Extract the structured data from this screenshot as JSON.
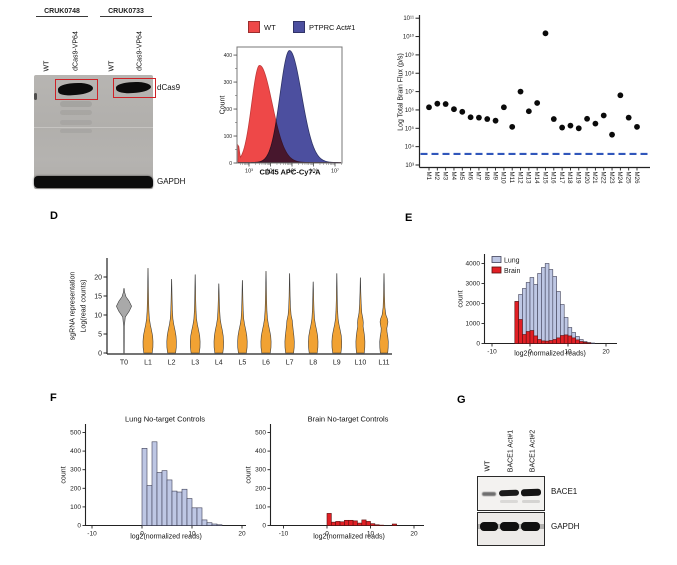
{
  "figure": {
    "panel_letters": {
      "d": "D",
      "e": "E",
      "f": "F",
      "g": "G"
    }
  },
  "colors": {
    "flow_red": "#ee4848",
    "flow_red_stroke": "#c03a3a",
    "flow_blue": "#4c4f9f",
    "flow_blue_stroke": "#303568",
    "lung_fill": "#bec7e4",
    "lung_stroke": "#3f4057",
    "brain_fill": "#e11f25",
    "brain_stroke": "#58100f",
    "violin_orange": "#f1a233",
    "violin_gray": "#a9a9a9",
    "dash_blue": "#3056bb",
    "red_box": "#cf2127"
  },
  "blot_dcas9": {
    "groups": [
      "CRUK0748",
      "CRUK0733"
    ],
    "lanes": [
      "WT",
      "dCas9-VP64",
      "WT",
      "dCas9-VP64"
    ],
    "markers": [
      "dCas9",
      "GAPDH"
    ]
  },
  "blot_bace1": {
    "lanes": [
      "WT",
      "BACE1 Act#1",
      "BACE1 Act#2"
    ],
    "markers": [
      "BACE1",
      "GAPDH"
    ]
  },
  "chart_data": [
    {
      "id": "flow-cd45",
      "type": "area",
      "legend": [
        "WT",
        "PTPRC Act#1"
      ],
      "xlabel": "CD45 APC-Cy7-A",
      "ylabel": "Count",
      "yticks": [
        0,
        100,
        200,
        300,
        400
      ],
      "xtick_labels": [
        "10³",
        "10⁴",
        "10⁵",
        "10⁶",
        "10⁷"
      ],
      "ylim": [
        0,
        430
      ],
      "series": [
        {
          "name": "WT",
          "peak_count": 360,
          "curve": {
            "c": 0.215,
            "sl": 0.075,
            "sr": 0.12
          },
          "edge_spike": {
            "c": 0.012,
            "s": 0.012,
            "h": 65
          }
        },
        {
          "name": "PTPRC Act#1",
          "peak_count": 415,
          "curve": {
            "c": 0.5,
            "sl": 0.09,
            "sr": 0.115
          }
        }
      ]
    },
    {
      "id": "brain-flux",
      "type": "scatter",
      "ylabel": "Log Total Brain Flux (p/s)",
      "ytick_labels": [
        "10³",
        "10⁴",
        "10⁵",
        "10⁶",
        "10⁷",
        "10⁸",
        "10⁹",
        "10¹⁰",
        "10¹¹"
      ],
      "ylim_log10": [
        3,
        11
      ],
      "categories": [
        "M1",
        "M2",
        "M3",
        "M4",
        "M5",
        "M6",
        "M7",
        "M8",
        "M9",
        "M10",
        "M11",
        "M12",
        "M13",
        "M14",
        "M15",
        "M16",
        "M17",
        "M18",
        "M19",
        "M20",
        "M21",
        "M22",
        "M23",
        "M24",
        "M25",
        "M26"
      ],
      "values": [
        1400000.0,
        2200000.0,
        2100000.0,
        1100000.0,
        790000.0,
        400000.0,
        380000.0,
        320000.0,
        260000.0,
        1400000.0,
        120000.0,
        10000000.0,
        850000.0,
        2400000.0,
        15000000000.0,
        320000.0,
        110000.0,
        140000.0,
        100000.0,
        330000.0,
        180000.0,
        500000.0,
        45000.0,
        6300000.0,
        380000.0,
        120000.0
      ],
      "threshold_line": {
        "value": 4000,
        "style": "dashed",
        "color_key": "dash_blue"
      }
    },
    {
      "id": "sgrna-representation",
      "type": "violin",
      "ylabel_line1": "sgRNA representation",
      "ylabel_line2": "Log(read counts)",
      "yticks": [
        0,
        5,
        10,
        15,
        20
      ],
      "categories": [
        "T0",
        "L1",
        "L2",
        "L3",
        "L4",
        "L5",
        "L6",
        "L7",
        "L8",
        "L9",
        "L10",
        "L11"
      ],
      "violins": [
        {
          "label": "T0",
          "color_key": "violin_gray",
          "max": 17,
          "profile": [
            [
              0,
              0.25
            ],
            [
              7,
              0.35
            ],
            [
              9.5,
              1.3
            ],
            [
              11,
              5.2
            ],
            [
              12.3,
              7.6
            ],
            [
              13.6,
              5.2
            ],
            [
              14.8,
              2.0
            ],
            [
              16,
              0.6
            ],
            [
              17,
              0.15
            ]
          ]
        },
        {
          "label": "L1",
          "color_key": "violin_orange",
          "max": 22.3,
          "profile": [
            [
              0,
              4.2
            ],
            [
              1.5,
              4.9
            ],
            [
              3,
              5.0
            ],
            [
              4.5,
              4.6
            ],
            [
              6,
              3.5
            ],
            [
              7.5,
              2.3
            ],
            [
              9,
              1.4
            ],
            [
              11,
              0.9
            ],
            [
              14,
              0.6
            ],
            [
              18,
              0.35
            ],
            [
              22.3,
              0.1
            ]
          ]
        },
        {
          "label": "L2",
          "color_key": "violin_orange",
          "max": 19.4,
          "profile": [
            [
              0,
              4.0
            ],
            [
              1.5,
              4.7
            ],
            [
              3,
              4.8
            ],
            [
              4.5,
              4.4
            ],
            [
              6,
              3.4
            ],
            [
              7.5,
              2.2
            ],
            [
              9,
              1.3
            ],
            [
              11,
              0.85
            ],
            [
              14,
              0.5
            ],
            [
              19.4,
              0.1
            ]
          ]
        },
        {
          "label": "L3",
          "color_key": "violin_orange",
          "max": 20.6,
          "profile": [
            [
              0,
              4.1
            ],
            [
              1.5,
              4.8
            ],
            [
              3,
              4.9
            ],
            [
              4.5,
              4.5
            ],
            [
              6,
              3.4
            ],
            [
              7.5,
              2.2
            ],
            [
              9,
              1.3
            ],
            [
              11,
              0.85
            ],
            [
              14,
              0.5
            ],
            [
              20.6,
              0.1
            ]
          ]
        },
        {
          "label": "L4",
          "color_key": "violin_orange",
          "max": 18.2,
          "profile": [
            [
              0,
              4.0
            ],
            [
              1.5,
              4.7
            ],
            [
              3,
              4.8
            ],
            [
              4.5,
              4.4
            ],
            [
              6,
              3.5
            ],
            [
              7.5,
              2.3
            ],
            [
              9,
              1.4
            ],
            [
              11,
              0.9
            ],
            [
              14,
              0.5
            ],
            [
              18.2,
              0.1
            ]
          ]
        },
        {
          "label": "L5",
          "color_key": "violin_orange",
          "max": 19.1,
          "profile": [
            [
              0,
              4.0
            ],
            [
              1.5,
              4.7
            ],
            [
              3,
              4.8
            ],
            [
              4.5,
              4.4
            ],
            [
              6,
              3.4
            ],
            [
              7.5,
              2.2
            ],
            [
              9,
              1.3
            ],
            [
              11,
              0.85
            ],
            [
              14,
              0.5
            ],
            [
              19.1,
              0.1
            ]
          ]
        },
        {
          "label": "L6",
          "color_key": "violin_orange",
          "max": 21.5,
          "profile": [
            [
              0,
              4.3
            ],
            [
              1.5,
              5.0
            ],
            [
              3,
              5.1
            ],
            [
              4.5,
              4.7
            ],
            [
              6,
              3.6
            ],
            [
              7.5,
              2.4
            ],
            [
              9,
              1.5
            ],
            [
              11,
              0.95
            ],
            [
              14,
              0.6
            ],
            [
              21.5,
              0.1
            ]
          ]
        },
        {
          "label": "L7",
          "color_key": "violin_orange",
          "max": 20.9,
          "profile": [
            [
              0,
              4.0
            ],
            [
              1.5,
              4.6
            ],
            [
              3,
              4.7
            ],
            [
              4.5,
              4.3
            ],
            [
              6,
              3.6
            ],
            [
              7.5,
              3.0
            ],
            [
              8.5,
              2.7
            ],
            [
              10,
              1.5
            ],
            [
              12,
              0.9
            ],
            [
              15,
              0.5
            ],
            [
              20.9,
              0.1
            ]
          ]
        },
        {
          "label": "L8",
          "color_key": "violin_orange",
          "max": 18.7,
          "profile": [
            [
              0,
              4.0
            ],
            [
              1.5,
              4.7
            ],
            [
              3,
              4.8
            ],
            [
              4.5,
              4.4
            ],
            [
              6,
              3.4
            ],
            [
              7.5,
              2.2
            ],
            [
              9,
              1.3
            ],
            [
              11,
              0.85
            ],
            [
              14,
              0.5
            ],
            [
              18.7,
              0.1
            ]
          ]
        },
        {
          "label": "L9",
          "color_key": "violin_orange",
          "max": 20.9,
          "profile": [
            [
              0,
              4.1
            ],
            [
              1.5,
              4.8
            ],
            [
              3,
              4.9
            ],
            [
              4.5,
              4.5
            ],
            [
              6,
              3.4
            ],
            [
              7.5,
              2.2
            ],
            [
              9,
              1.3
            ],
            [
              11,
              0.85
            ],
            [
              14,
              0.5
            ],
            [
              20.9,
              0.1
            ]
          ]
        },
        {
          "label": "L10",
          "color_key": "violin_orange",
          "max": 19.8,
          "profile": [
            [
              0,
              3.9
            ],
            [
              1.5,
              4.4
            ],
            [
              3,
              4.5
            ],
            [
              4.5,
              4.1
            ],
            [
              6,
              3.3
            ],
            [
              7,
              2.7
            ],
            [
              8,
              2.9
            ],
            [
              9,
              2.5
            ],
            [
              10.5,
              1.4
            ],
            [
              13,
              0.8
            ],
            [
              16,
              0.4
            ],
            [
              19.8,
              0.1
            ]
          ]
        },
        {
          "label": "L11",
          "color_key": "violin_orange",
          "max": 20.9,
          "profile": [
            [
              0,
              3.7
            ],
            [
              1.5,
              4.2
            ],
            [
              3,
              4.3
            ],
            [
              4.5,
              3.7
            ],
            [
              5.5,
              3.0
            ],
            [
              6.5,
              2.8
            ],
            [
              7.5,
              3.6
            ],
            [
              8.2,
              3.9
            ],
            [
              9,
              3.4
            ],
            [
              10,
              1.9
            ],
            [
              12,
              0.9
            ],
            [
              15,
              0.5
            ],
            [
              20.9,
              0.1
            ]
          ]
        }
      ]
    },
    {
      "id": "reads-by-tissue",
      "type": "bar",
      "subtype": "histogram",
      "legend": [
        "Lung",
        "Brain"
      ],
      "xlabel": "log2(normalized reads)",
      "ylabel": "count",
      "yticks": [
        0,
        1000,
        2000,
        3000,
        4000
      ],
      "xticks": [
        -10,
        0,
        10,
        20
      ],
      "x_start": -4,
      "bin_width": 1,
      "series": [
        {
          "name": "Lung",
          "color_key": "lung_fill",
          "values": [
            2100,
            2450,
            2750,
            3050,
            3300,
            2950,
            3500,
            3800,
            4000,
            3700,
            3350,
            2600,
            1950,
            1300,
            800,
            550,
            350,
            200,
            100,
            50,
            25
          ]
        },
        {
          "name": "Brain",
          "color_key": "brain_fill",
          "values": [
            2100,
            1200,
            450,
            600,
            650,
            380,
            200,
            130,
            120,
            150,
            200,
            280,
            400,
            430,
            380,
            280,
            180,
            100,
            60,
            30
          ]
        }
      ]
    },
    {
      "id": "lung-ntc",
      "type": "bar",
      "subtype": "histogram",
      "title": "Lung No-target Controls",
      "xlabel": "log2(normalized reads)",
      "ylabel": "count",
      "yticks": [
        0,
        100,
        200,
        300,
        400,
        500
      ],
      "xticks": [
        -10,
        0,
        10,
        20
      ],
      "x_start": 0,
      "bin_width": 1,
      "color_key": "lung_fill",
      "values": [
        415,
        215,
        450,
        285,
        295,
        245,
        185,
        180,
        195,
        145,
        95,
        95,
        30,
        15,
        8,
        4
      ]
    },
    {
      "id": "brain-ntc",
      "type": "bar",
      "subtype": "histogram",
      "title": "Brain No-target Controls",
      "xlabel": "log2(normalized reads)",
      "ylabel": "count",
      "yticks": [
        0,
        100,
        200,
        300,
        400,
        500
      ],
      "xticks": [
        -10,
        0,
        10,
        20
      ],
      "x_start": 0,
      "bin_width": 1,
      "color_key": "brain_fill",
      "values": [
        65,
        18,
        22,
        20,
        28,
        28,
        25,
        13,
        30,
        22,
        10,
        4,
        2,
        0,
        0,
        8
      ]
    }
  ]
}
